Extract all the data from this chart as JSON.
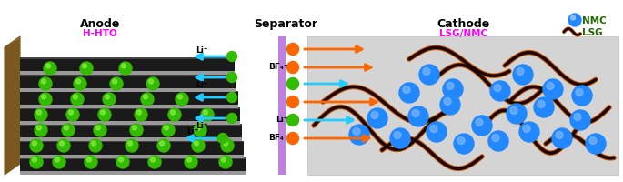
{
  "fig_width": 6.85,
  "fig_height": 2.01,
  "dpi": 100,
  "bg_color": "#ffffff",
  "anode_label": "Anode",
  "anode_sublabel": "H-HTO",
  "separator_label": "Separator",
  "cathode_label": "Cathode",
  "cathode_sublabel": "LSG/NMC",
  "nmc_label": "NMC",
  "lsg_label": "LSG",
  "label_color": "#000000",
  "sublabel_color": "#ff00ff",
  "nmc_label_color": "#226600",
  "separator_color": "#c080e0",
  "cathode_bg": "#d4d4d4",
  "anode_plate_dark": "#1a1a1a",
  "anode_plate_gray": "#aaaaaa",
  "anode_base_color": "#9B7830",
  "anode_shadow": "#555555",
  "li_ion_color": "#22ccff",
  "bf4_ion_color": "#ff6600",
  "green_ball_color": "#33bb00",
  "blue_ball_color": "#2288ff",
  "sheet_dark": "#1a0800",
  "sheet_orange": "#cc5500"
}
